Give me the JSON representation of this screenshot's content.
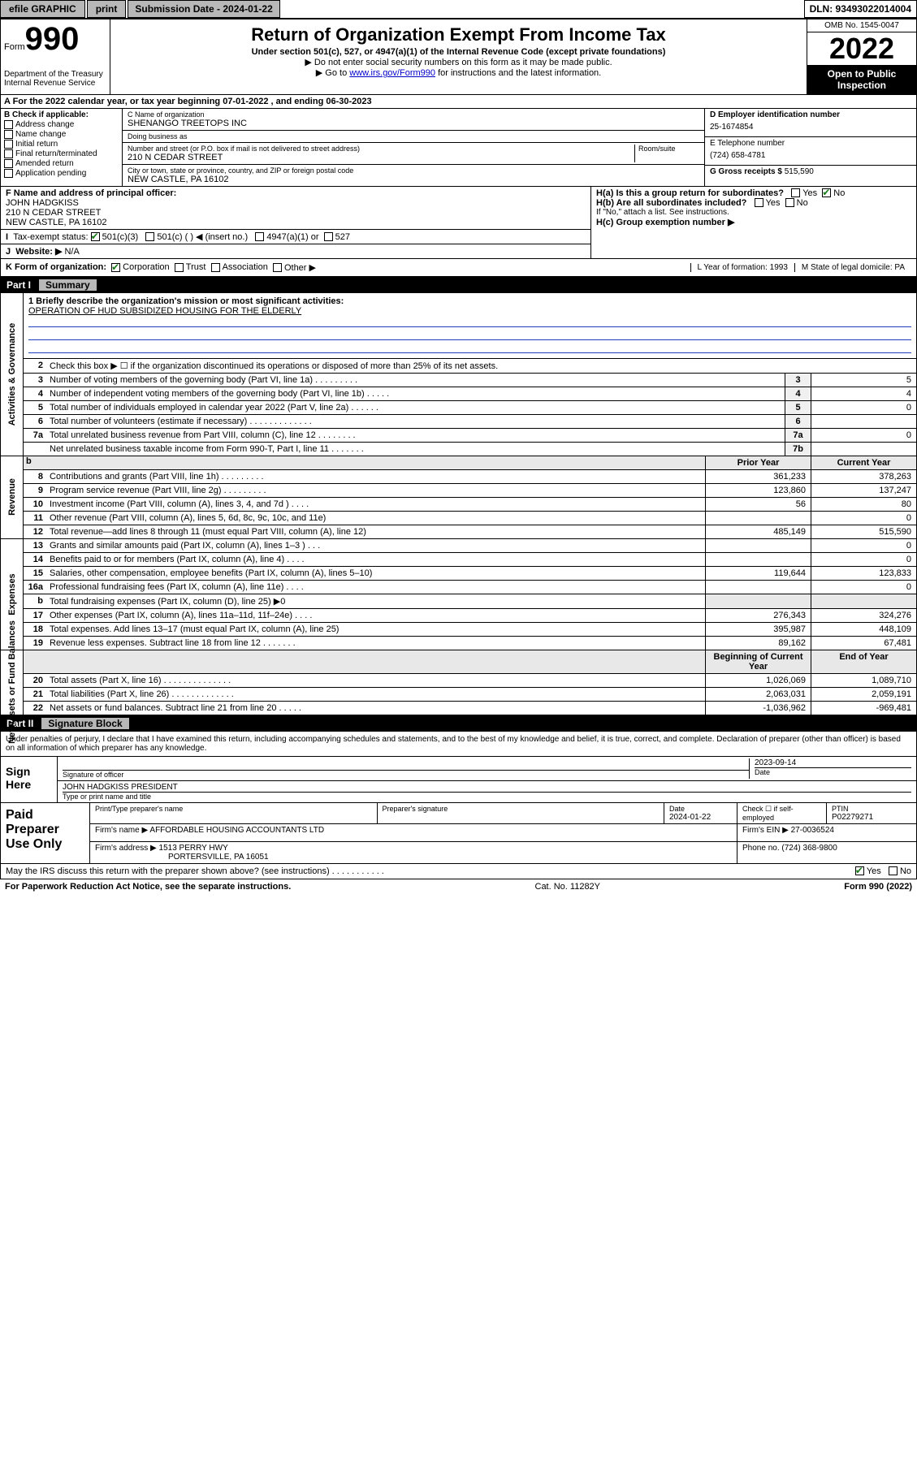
{
  "topbar": {
    "efile": "efile GRAPHIC",
    "print": "print",
    "submission": "Submission Date - 2024-01-22",
    "dln": "DLN: 93493022014004"
  },
  "header": {
    "form_label": "Form",
    "form_num": "990",
    "dept": "Department of the Treasury\nInternal Revenue Service",
    "title": "Return of Organization Exempt From Income Tax",
    "sub1": "Under section 501(c), 527, or 4947(a)(1) of the Internal Revenue Code (except private foundations)",
    "sub2": "▶ Do not enter social security numbers on this form as it may be made public.",
    "sub3_pre": "▶ Go to ",
    "sub3_link": "www.irs.gov/Form990",
    "sub3_post": " for instructions and the latest information.",
    "omb": "OMB No. 1545-0047",
    "year": "2022",
    "open": "Open to Public Inspection"
  },
  "row_a": "A For the 2022 calendar year, or tax year beginning 07-01-2022   , and ending 06-30-2023",
  "col_b": {
    "label": "B Check if applicable:",
    "items": [
      "Address change",
      "Name change",
      "Initial return",
      "Final return/terminated",
      "Amended return",
      "Application pending"
    ]
  },
  "col_c": {
    "name_label": "C Name of organization",
    "name": "SHENANGO TREETOPS INC",
    "dba_label": "Doing business as",
    "dba": "",
    "addr_label": "Number and street (or P.O. box if mail is not delivered to street address)",
    "room_label": "Room/suite",
    "addr": "210 N CEDAR STREET",
    "city_label": "City or town, state or province, country, and ZIP or foreign postal code",
    "city": "NEW CASTLE, PA  16102"
  },
  "col_d": {
    "ein_label": "D Employer identification number",
    "ein": "25-1674854",
    "phone_label": "E Telephone number",
    "phone": "(724) 658-4781",
    "gross_label": "G Gross receipts $",
    "gross": "515,590"
  },
  "block_f": {
    "f_label": "F  Name and address of principal officer:",
    "f_name": "JOHN HADGKISS",
    "f_addr1": "210 N CEDAR STREET",
    "f_addr2": "NEW CASTLE, PA  16102",
    "i_label": "Tax-exempt status:",
    "i_501c3": "501(c)(3)",
    "i_501c": "501(c) (  ) ◀ (insert no.)",
    "i_4947": "4947(a)(1) or",
    "i_527": "527",
    "j_label": "Website: ▶",
    "j_val": "N/A"
  },
  "block_h": {
    "ha": "H(a)  Is this a group return for subordinates?",
    "ha_yes": "Yes",
    "ha_no": "No",
    "hb": "H(b)  Are all subordinates included?",
    "hb_yes": "Yes",
    "hb_no": "No",
    "hb_note": "If \"No,\" attach a list. See instructions.",
    "hc": "H(c)  Group exemption number ▶"
  },
  "row_k": {
    "label": "K Form of organization:",
    "corp": "Corporation",
    "trust": "Trust",
    "assoc": "Association",
    "other": "Other ▶",
    "l": "L Year of formation: 1993",
    "m": "M State of legal domicile: PA"
  },
  "part1": {
    "header_pt": "Part I",
    "header_ttl": "Summary",
    "mission_label": "1  Briefly describe the organization's mission or most significant activities:",
    "mission": "OPERATION OF HUD SUBSIDIZED HOUSING FOR THE ELDERLY",
    "line2": "Check this box ▶ ☐  if the organization discontinued its operations or disposed of more than 25% of its net assets.",
    "sidetabs": {
      "gov": "Activities & Governance",
      "rev": "Revenue",
      "exp": "Expenses",
      "net": "Net Assets or Fund Balances"
    },
    "lines_gov": [
      {
        "n": "3",
        "d": "Number of voting members of the governing body (Part VI, line 1a)   .    .    .    .    .    .    .    .    .",
        "b": "3",
        "v": "5"
      },
      {
        "n": "4",
        "d": "Number of independent voting members of the governing body (Part VI, line 1b)   .    .    .    .    .",
        "b": "4",
        "v": "4"
      },
      {
        "n": "5",
        "d": "Total number of individuals employed in calendar year 2022 (Part V, line 2a)   .    .    .    .    .    .",
        "b": "5",
        "v": "0"
      },
      {
        "n": "6",
        "d": "Total number of volunteers (estimate if necessary)   .    .    .    .    .    .    .    .    .    .    .    .    .",
        "b": "6",
        "v": ""
      },
      {
        "n": "7a",
        "d": "Total unrelated business revenue from Part VIII, column (C), line 12   .    .    .    .    .    .    .    .",
        "b": "7a",
        "v": "0"
      },
      {
        "n": "",
        "d": "Net unrelated business taxable income from Form 990-T, Part I, line 11   .    .    .    .    .    .    .",
        "b": "7b",
        "v": ""
      }
    ],
    "col_headers": {
      "c1": "Prior Year",
      "c2": "Current Year"
    },
    "lines_rev": [
      {
        "n": "8",
        "d": "Contributions and grants (Part VIII, line 1h)   .    .    .    .    .    .    .    .    .",
        "v1": "361,233",
        "v2": "378,263"
      },
      {
        "n": "9",
        "d": "Program service revenue (Part VIII, line 2g)   .    .    .    .    .    .    .    .    .",
        "v1": "123,860",
        "v2": "137,247"
      },
      {
        "n": "10",
        "d": "Investment income (Part VIII, column (A), lines 3, 4, and 7d )   .    .    .    .",
        "v1": "56",
        "v2": "80"
      },
      {
        "n": "11",
        "d": "Other revenue (Part VIII, column (A), lines 5, 6d, 8c, 9c, 10c, and 11e)",
        "v1": "",
        "v2": "0"
      },
      {
        "n": "12",
        "d": "Total revenue—add lines 8 through 11 (must equal Part VIII, column (A), line 12)",
        "v1": "485,149",
        "v2": "515,590"
      }
    ],
    "lines_exp": [
      {
        "n": "13",
        "d": "Grants and similar amounts paid (Part IX, column (A), lines 1–3 )   .    .    .",
        "v1": "",
        "v2": "0"
      },
      {
        "n": "14",
        "d": "Benefits paid to or for members (Part IX, column (A), line 4)   .    .    .    .",
        "v1": "",
        "v2": "0"
      },
      {
        "n": "15",
        "d": "Salaries, other compensation, employee benefits (Part IX, column (A), lines 5–10)",
        "v1": "119,644",
        "v2": "123,833"
      },
      {
        "n": "16a",
        "d": "Professional fundraising fees (Part IX, column (A), line 11e)   .    .    .    .",
        "v1": "",
        "v2": "0"
      },
      {
        "n": "b",
        "d": "Total fundraising expenses (Part IX, column (D), line 25) ▶0",
        "v1": "",
        "v2": "",
        "grey": true
      },
      {
        "n": "17",
        "d": "Other expenses (Part IX, column (A), lines 11a–11d, 11f–24e)   .    .    .    .",
        "v1": "276,343",
        "v2": "324,276"
      },
      {
        "n": "18",
        "d": "Total expenses. Add lines 13–17 (must equal Part IX, column (A), line 25)",
        "v1": "395,987",
        "v2": "448,109"
      },
      {
        "n": "19",
        "d": "Revenue less expenses. Subtract line 18 from line 12   .    .    .    .    .    .    .",
        "v1": "89,162",
        "v2": "67,481"
      }
    ],
    "net_headers": {
      "c1": "Beginning of Current Year",
      "c2": "End of Year"
    },
    "lines_net": [
      {
        "n": "20",
        "d": "Total assets (Part X, line 16)   .    .    .    .    .    .    .    .    .    .    .    .    .    .",
        "v1": "1,026,069",
        "v2": "1,089,710"
      },
      {
        "n": "21",
        "d": "Total liabilities (Part X, line 26)   .    .    .    .    .    .    .    .    .    .    .    .    .",
        "v1": "2,063,031",
        "v2": "2,059,191"
      },
      {
        "n": "22",
        "d": "Net assets or fund balances. Subtract line 21 from line 20   .    .    .    .    .",
        "v1": "-1,036,962",
        "v2": "-969,481"
      }
    ]
  },
  "part2": {
    "header_pt": "Part II",
    "header_ttl": "Signature Block",
    "intro": "Under penalties of perjury, I declare that I have examined this return, including accompanying schedules and statements, and to the best of my knowledge and belief, it is true, correct, and complete. Declaration of preparer (other than officer) is based on all information of which preparer has any knowledge.",
    "sign_here": "Sign Here",
    "sig_officer": "Signature of officer",
    "sig_date": "2023-09-14",
    "sig_date_label": "Date",
    "sig_name": "JOHN HADGKISS PRESIDENT",
    "sig_name_label": "Type or print name and title",
    "paid_label": "Paid Preparer Use Only",
    "prep_name_label": "Print/Type preparer's name",
    "prep_sig_label": "Preparer's signature",
    "prep_date_label": "Date",
    "prep_date": "2024-01-22",
    "prep_check_label": "Check ☐ if self-employed",
    "ptin_label": "PTIN",
    "ptin": "P02279271",
    "firm_name_label": "Firm's name    ▶",
    "firm_name": "AFFORDABLE HOUSING ACCOUNTANTS LTD",
    "firm_ein_label": "Firm's EIN ▶",
    "firm_ein": "27-0036524",
    "firm_addr_label": "Firm's address ▶",
    "firm_addr1": "1513 PERRY HWY",
    "firm_addr2": "PORTERSVILLE, PA  16051",
    "firm_phone_label": "Phone no.",
    "firm_phone": "(724) 368-9800",
    "discuss": "May the IRS discuss this return with the preparer shown above? (see instructions)   .    .    .    .    .    .    .    .    .    .    .",
    "discuss_yes": "Yes",
    "discuss_no": "No"
  },
  "footer": {
    "left": "For Paperwork Reduction Act Notice, see the separate instructions.",
    "mid": "Cat. No. 11282Y",
    "right": "Form 990 (2022)"
  }
}
